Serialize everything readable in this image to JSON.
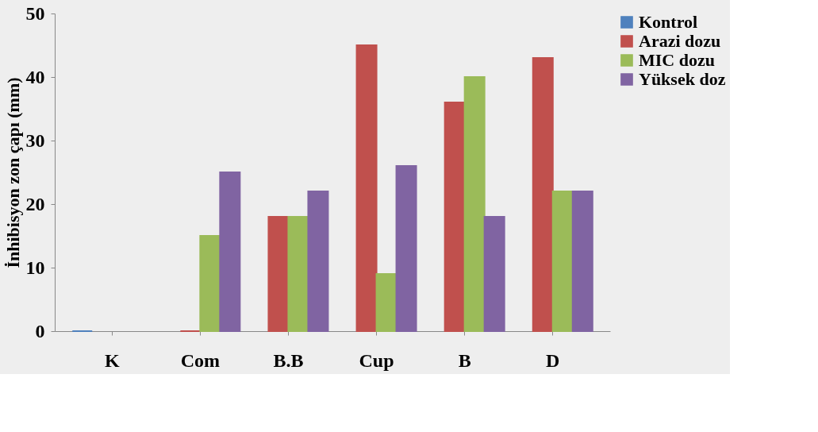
{
  "chart_data": {
    "type": "bar",
    "ylabel": "İnhibisyon zon çapı (mm)",
    "categories": [
      "K",
      "Com",
      "B.B",
      "Cup",
      "B",
      "D"
    ],
    "series": [
      {
        "name": "Kontrol",
        "color": "#4f81bd",
        "values": [
          0,
          null,
          null,
          null,
          null,
          null
        ]
      },
      {
        "name": "Arazi dozu",
        "color": "#c0504d",
        "values": [
          null,
          0,
          18,
          45,
          36,
          43
        ]
      },
      {
        "name": "MIC dozu",
        "color": "#9bbb59",
        "values": [
          null,
          15,
          18,
          9,
          40,
          22
        ]
      },
      {
        "name": "Yüksek doz",
        "color": "#8064a2",
        "values": [
          null,
          25,
          22,
          26,
          18,
          22
        ]
      }
    ],
    "ylim": [
      0,
      50
    ],
    "yticks": [
      0,
      10,
      20,
      30,
      40,
      50
    ],
    "grid": false,
    "legend": "top right"
  }
}
